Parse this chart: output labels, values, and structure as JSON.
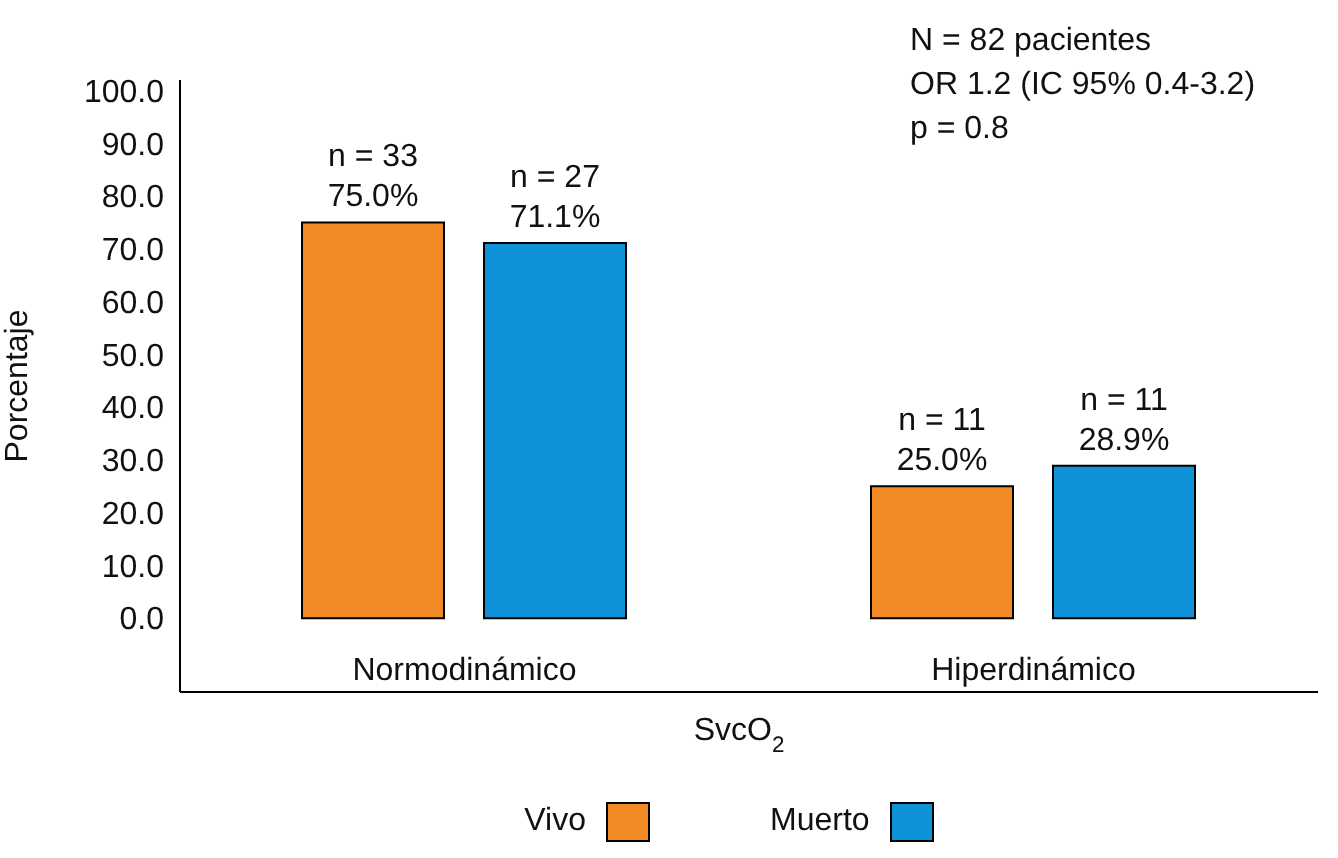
{
  "chart_data": {
    "type": "bar",
    "xlabel": "SvcO$_{2}$",
    "ylabel": "Porcentaje",
    "categories": [
      "Normodinámico",
      "Hiperdinámico"
    ],
    "series": [
      {
        "name": "Vivo",
        "color": "#f28a27",
        "values": [
          75.0,
          25.0
        ],
        "value_labels": [
          "n = 33\n75.0%",
          "n = 11\n25.0%"
        ]
      },
      {
        "name": "Muerto",
        "color": "#0e93d8",
        "values": [
          71.1,
          28.9
        ],
        "value_labels": [
          "n = 27\n71.1%",
          "n = 11\n28.9%"
        ]
      }
    ],
    "ylim": [
      -14,
      102
    ],
    "yticks": [
      {
        "value": 0,
        "label": "0.0"
      },
      {
        "value": 10,
        "label": "10.0"
      },
      {
        "value": 20,
        "label": "20.0"
      },
      {
        "value": 30,
        "label": "30.0"
      },
      {
        "value": 40,
        "label": "40.0"
      },
      {
        "value": 50,
        "label": "50.0"
      },
      {
        "value": 60,
        "label": "60.0"
      },
      {
        "value": 70,
        "label": "70.0"
      },
      {
        "value": 80,
        "label": "80.0"
      },
      {
        "value": 90,
        "label": "90.0"
      },
      {
        "value": 100,
        "label": "100.0"
      }
    ],
    "annotations": [
      "N = 82 pacientes",
      "OR 1.2 (IC 95% 0.4-3.2)",
      "p = 0.8"
    ],
    "grid": false,
    "legend": "bottom"
  }
}
